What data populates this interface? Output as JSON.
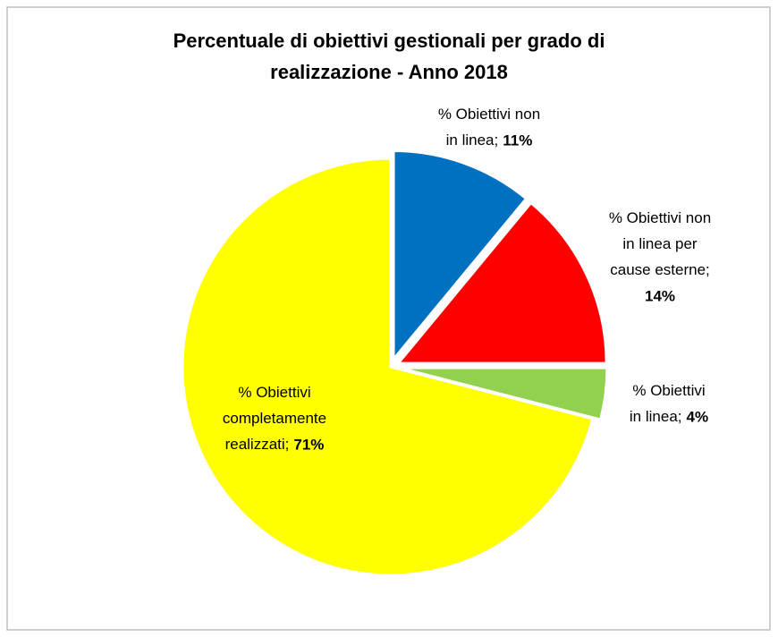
{
  "chart_data": {
    "type": "pie",
    "title": [
      "Percentuale di obiettivi  gestionali per grado di",
      "realizzazione - Anno 2018"
    ],
    "categories": [
      "% Obiettivi non in linea;",
      "% Obiettivi non in linea per cause esterne;",
      "% Obiettivi in linea;",
      "% Obiettivi completamente realizzati;"
    ],
    "values": [
      11,
      14,
      4,
      71
    ],
    "value_labels": [
      "11%",
      "14%",
      "4%",
      "71%"
    ],
    "colors": [
      "#0070c0",
      "#ff0000",
      "#92d050",
      "#ffff00"
    ]
  }
}
